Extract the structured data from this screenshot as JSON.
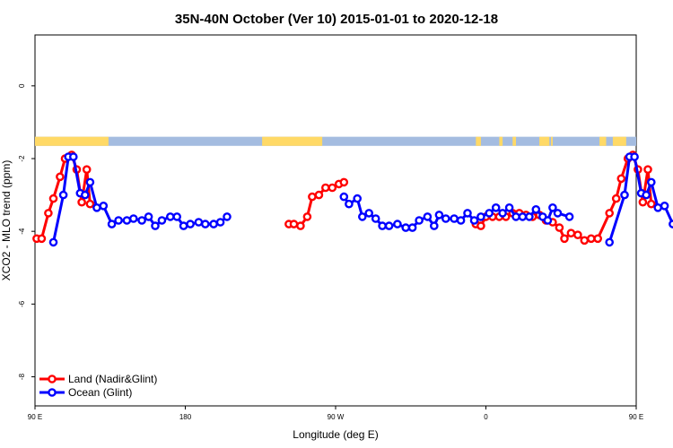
{
  "chart_data": {
    "type": "line",
    "title": "35N-40N October (Ver 10)   2015-01-01 to 2020-12-18",
    "xlabel": "Longitude (deg E)",
    "ylabel": "XCO2 - MLO trend (ppm)",
    "xlim": [
      90,
      450
    ],
    "ylim": [
      -8.8,
      1.4
    ],
    "x_ticks": [
      {
        "value": 90,
        "label": "90 E"
      },
      {
        "value": 180,
        "label": "180"
      },
      {
        "value": 270,
        "label": "90 W"
      },
      {
        "value": 360,
        "label": "0"
      },
      {
        "value": 450,
        "label": "90 E"
      },
      {
        "value": 540,
        "label": "180"
      }
    ],
    "y_ticks": [
      {
        "value": 0,
        "label": "0"
      },
      {
        "value": -2,
        "label": "-2"
      },
      {
        "value": -4,
        "label": "-4"
      },
      {
        "value": -6,
        "label": "-6"
      },
      {
        "value": -8,
        "label": "-8"
      }
    ],
    "land_mask_band": {
      "y_range": [
        -1.65,
        -1.4
      ],
      "land_color": "#FFD966",
      "ocean_color": "#A4BCE0",
      "land_segments": [
        [
          90,
          134
        ],
        [
          226,
          262
        ],
        [
          354,
          357
        ],
        [
          368,
          370
        ],
        [
          376,
          378
        ],
        [
          392,
          398
        ],
        [
          399,
          400
        ],
        [
          428,
          432
        ],
        [
          436,
          444
        ],
        [
          450,
          494
        ]
      ]
    },
    "series": [
      {
        "name": "Land (Nadir&Glint)",
        "color": "#FF0000",
        "points": [
          [
            91,
            -4.2
          ],
          [
            94,
            -4.2
          ],
          [
            98,
            -3.5
          ],
          [
            101,
            -3.1
          ],
          [
            105,
            -2.5
          ],
          [
            108,
            -2.0
          ],
          [
            112,
            -1.9
          ],
          [
            115,
            -2.3
          ],
          [
            118,
            -3.2
          ],
          [
            121,
            -2.3
          ],
          [
            123,
            -3.25
          ],
          [
            242,
            -3.8
          ],
          [
            245,
            -3.8
          ],
          [
            249,
            -3.85
          ],
          [
            253,
            -3.6
          ],
          [
            256,
            -3.05
          ],
          [
            260,
            -3.0
          ],
          [
            264,
            -2.8
          ],
          [
            268,
            -2.8
          ],
          [
            272,
            -2.7
          ],
          [
            275,
            -2.65
          ],
          [
            354,
            -3.8
          ],
          [
            357,
            -3.85
          ],
          [
            360,
            -3.6
          ],
          [
            364,
            -3.6
          ],
          [
            368,
            -3.6
          ],
          [
            372,
            -3.6
          ],
          [
            376,
            -3.5
          ],
          [
            380,
            -3.5
          ],
          [
            384,
            -3.55
          ],
          [
            388,
            -3.6
          ],
          [
            392,
            -3.55
          ],
          [
            396,
            -3.7
          ],
          [
            400,
            -3.75
          ],
          [
            404,
            -3.9
          ],
          [
            407,
            -4.2
          ],
          [
            411,
            -4.05
          ],
          [
            415,
            -4.1
          ],
          [
            419,
            -4.25
          ],
          [
            423,
            -4.2
          ],
          [
            427,
            -4.2
          ],
          [
            434,
            -3.5
          ],
          [
            438,
            -3.1
          ],
          [
            441,
            -2.55
          ],
          [
            445,
            -2.0
          ],
          [
            448,
            -1.9
          ],
          [
            451,
            -2.3
          ],
          [
            454,
            -3.2
          ],
          [
            457,
            -2.3
          ],
          [
            459,
            -3.25
          ]
        ]
      },
      {
        "name": "Ocean (Glint)",
        "color": "#0000FF",
        "points": [
          [
            101,
            -4.3
          ],
          [
            107,
            -3.0
          ],
          [
            110,
            -1.95
          ],
          [
            113,
            -1.95
          ],
          [
            117,
            -2.95
          ],
          [
            120,
            -3.0
          ],
          [
            123,
            -2.65
          ],
          [
            127,
            -3.35
          ],
          [
            131,
            -3.3
          ],
          [
            136,
            -3.8
          ],
          [
            140,
            -3.7
          ],
          [
            145,
            -3.7
          ],
          [
            149,
            -3.65
          ],
          [
            154,
            -3.7
          ],
          [
            158,
            -3.6
          ],
          [
            162,
            -3.85
          ],
          [
            166,
            -3.7
          ],
          [
            171,
            -3.6
          ],
          [
            175,
            -3.6
          ],
          [
            179,
            -3.85
          ],
          [
            183,
            -3.8
          ],
          [
            188,
            -3.75
          ],
          [
            192,
            -3.8
          ],
          [
            197,
            -3.8
          ],
          [
            201,
            -3.75
          ],
          [
            205,
            -3.6
          ],
          [
            275,
            -3.05
          ],
          [
            278,
            -3.25
          ],
          [
            283,
            -3.1
          ],
          [
            286,
            -3.6
          ],
          [
            290,
            -3.5
          ],
          [
            294,
            -3.65
          ],
          [
            298,
            -3.85
          ],
          [
            302,
            -3.85
          ],
          [
            307,
            -3.8
          ],
          [
            312,
            -3.9
          ],
          [
            316,
            -3.9
          ],
          [
            320,
            -3.7
          ],
          [
            325,
            -3.6
          ],
          [
            329,
            -3.85
          ],
          [
            332,
            -3.55
          ],
          [
            336,
            -3.65
          ],
          [
            341,
            -3.65
          ],
          [
            345,
            -3.7
          ],
          [
            349,
            -3.5
          ],
          [
            353,
            -3.7
          ],
          [
            357,
            -3.6
          ],
          [
            362,
            -3.5
          ],
          [
            366,
            -3.35
          ],
          [
            370,
            -3.5
          ],
          [
            374,
            -3.35
          ],
          [
            378,
            -3.6
          ],
          [
            382,
            -3.6
          ],
          [
            386,
            -3.6
          ],
          [
            390,
            -3.4
          ],
          [
            394,
            -3.6
          ],
          [
            397,
            -3.7
          ],
          [
            400,
            -3.35
          ],
          [
            403,
            -3.5
          ],
          [
            410,
            -3.6
          ],
          [
            434,
            -4.3
          ],
          [
            443,
            -3.0
          ],
          [
            446,
            -1.95
          ],
          [
            449,
            -1.95
          ],
          [
            453,
            -2.95
          ],
          [
            456,
            -3.0
          ],
          [
            459,
            -2.65
          ],
          [
            463,
            -3.35
          ],
          [
            467,
            -3.3
          ],
          [
            472,
            -3.8
          ],
          [
            476,
            -3.7
          ],
          [
            481,
            -3.7
          ],
          [
            485,
            -3.65
          ],
          [
            490,
            -3.7
          ]
        ]
      }
    ],
    "legend": {
      "position": "bottom-left",
      "entries": [
        {
          "label": "Land (Nadir&Glint)",
          "color": "#FF0000"
        },
        {
          "label": "Ocean (Glint)",
          "color": "#0000FF"
        }
      ]
    }
  }
}
